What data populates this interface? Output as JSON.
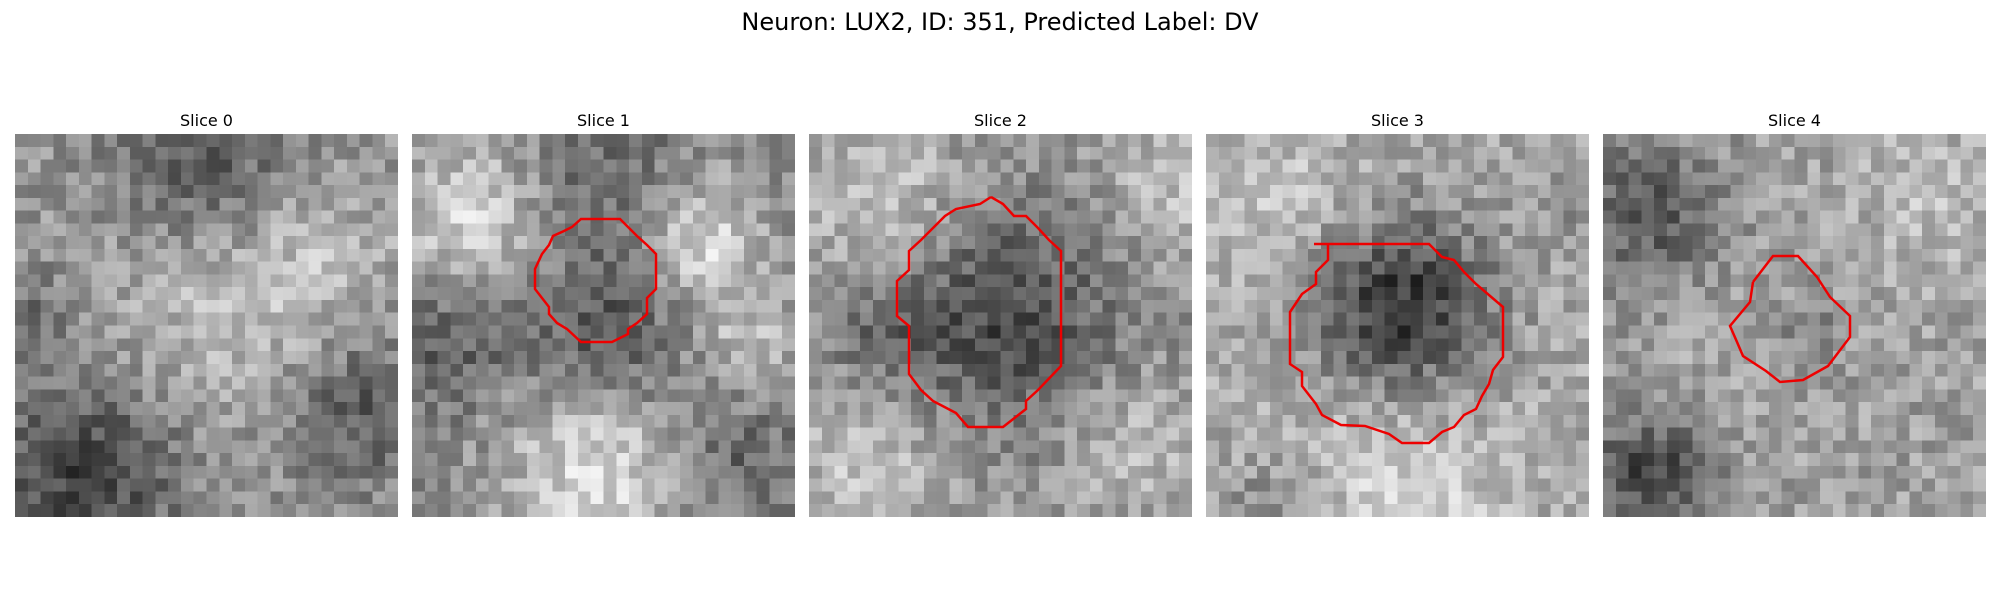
{
  "title": "Neuron: LUX2, ID: 351, Predicted Label: DV",
  "colors": {
    "contour": "#ee0000"
  },
  "panels": [
    {
      "title": "Slice 0",
      "has_contour": false,
      "seed": 11,
      "pattern": "s0"
    },
    {
      "title": "Slice 1",
      "has_contour": true,
      "seed": 23,
      "pattern": "s1"
    },
    {
      "title": "Slice 2",
      "has_contour": true,
      "seed": 37,
      "pattern": "s2"
    },
    {
      "title": "Slice 3",
      "has_contour": true,
      "seed": 53,
      "pattern": "s3"
    },
    {
      "title": "Slice 4",
      "has_contour": true,
      "seed": 71,
      "pattern": "s4"
    }
  ]
}
